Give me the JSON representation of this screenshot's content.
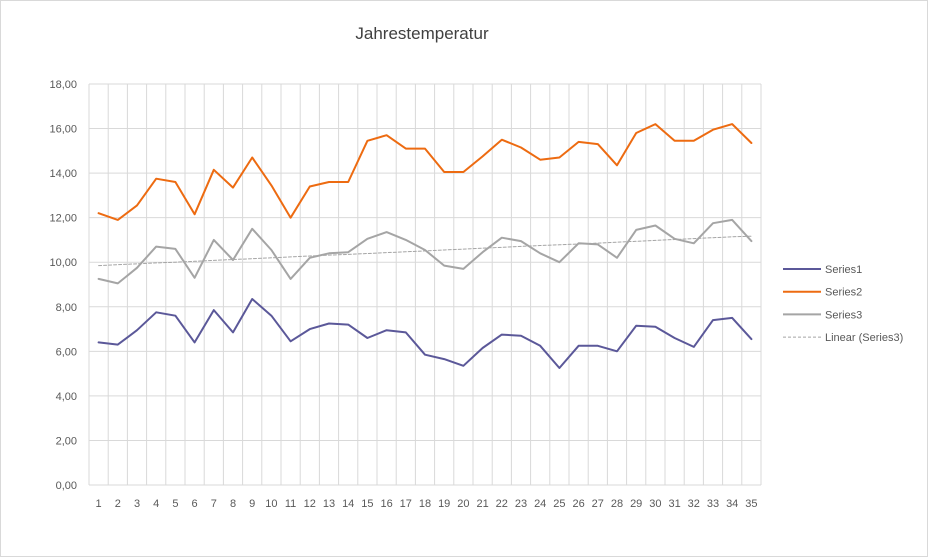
{
  "chart_data": {
    "type": "line",
    "title": "Jahrestemperatur",
    "xlabel": "",
    "ylabel": "",
    "categories": [
      "1",
      "2",
      "3",
      "4",
      "5",
      "6",
      "7",
      "8",
      "9",
      "10",
      "11",
      "12",
      "13",
      "14",
      "15",
      "16",
      "17",
      "18",
      "19",
      "20",
      "21",
      "22",
      "23",
      "24",
      "25",
      "26",
      "27",
      "28",
      "29",
      "30",
      "31",
      "32",
      "33",
      "34",
      "35"
    ],
    "ylim": [
      0,
      18
    ],
    "y_ticks": [
      "0,00",
      "2,00",
      "4,00",
      "6,00",
      "8,00",
      "10,00",
      "12,00",
      "14,00",
      "16,00",
      "18,00"
    ],
    "grid": true,
    "legend_position": "right",
    "series": [
      {
        "name": "Series1",
        "color": "#5b5899",
        "style": "solid",
        "values": [
          6.4,
          6.3,
          6.95,
          7.75,
          7.6,
          6.4,
          7.85,
          6.85,
          8.35,
          7.6,
          6.45,
          7.0,
          7.25,
          7.2,
          6.6,
          6.95,
          6.85,
          5.85,
          5.65,
          5.35,
          6.15,
          6.75,
          6.7,
          6.25,
          5.25,
          6.25,
          6.25,
          6.0,
          7.15,
          7.1,
          6.6,
          6.2,
          7.4,
          7.5,
          6.55
        ]
      },
      {
        "name": "Series2",
        "color": "#ed6b11",
        "style": "solid",
        "values": [
          12.2,
          11.9,
          12.55,
          13.75,
          13.6,
          12.15,
          14.15,
          13.35,
          14.7,
          13.45,
          12.0,
          13.4,
          13.6,
          13.6,
          15.45,
          15.7,
          15.1,
          15.1,
          14.05,
          14.05,
          14.75,
          15.5,
          15.15,
          14.6,
          14.7,
          15.4,
          15.3,
          14.35,
          15.8,
          16.2,
          15.45,
          15.45,
          15.95,
          16.2,
          15.35
        ]
      },
      {
        "name": "Series3",
        "color": "#a5a5a5",
        "style": "solid",
        "values": [
          9.25,
          9.05,
          9.75,
          10.7,
          10.6,
          9.3,
          11.0,
          10.1,
          11.5,
          10.55,
          9.25,
          10.2,
          10.4,
          10.45,
          11.05,
          11.35,
          11.0,
          10.55,
          9.85,
          9.7,
          10.45,
          11.1,
          10.95,
          10.4,
          10.0,
          10.85,
          10.8,
          10.2,
          11.45,
          11.65,
          11.05,
          10.85,
          11.75,
          11.9,
          10.95
        ]
      },
      {
        "name": "Linear (Series3)",
        "color": "#a5a5a5",
        "style": "dashed",
        "values": [
          9.85,
          9.89,
          9.93,
          9.97,
          10.0,
          10.04,
          10.08,
          10.12,
          10.16,
          10.2,
          10.24,
          10.28,
          10.32,
          10.35,
          10.39,
          10.43,
          10.47,
          10.51,
          10.55,
          10.59,
          10.63,
          10.67,
          10.71,
          10.75,
          10.78,
          10.82,
          10.86,
          10.9,
          10.94,
          10.98,
          11.02,
          11.06,
          11.1,
          11.14,
          11.17
        ]
      }
    ]
  }
}
